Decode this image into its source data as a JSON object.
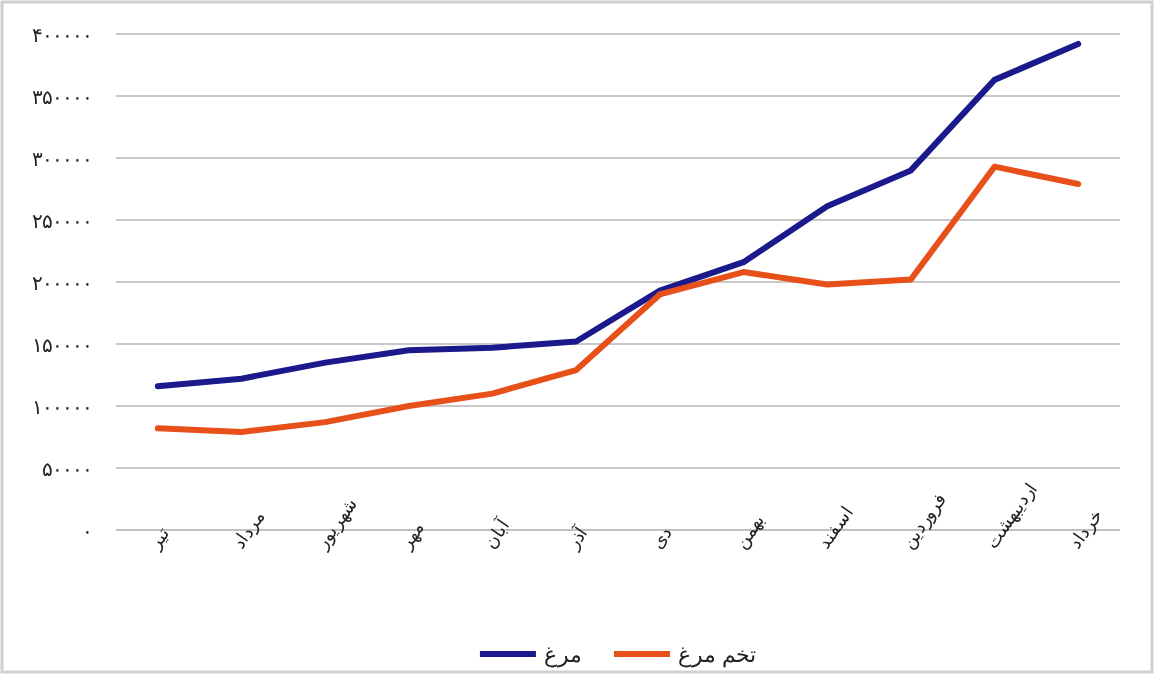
{
  "chart_data": {
    "type": "line",
    "categories": [
      "تیر",
      "مرداد",
      "شهریور",
      "مهر",
      "آبان",
      "آذر",
      "دی",
      "بهمن",
      "اسفند",
      "فروردین",
      "اردیبهشت",
      "خرداد"
    ],
    "series": [
      {
        "name": "مرغ",
        "color": "#1a1a8c",
        "values": [
          116000,
          122000,
          135000,
          145000,
          147000,
          152000,
          193000,
          216000,
          261000,
          290000,
          363000,
          392000
        ]
      },
      {
        "name": "تخم مرغ",
        "color": "#e8501a",
        "values": [
          82000,
          79000,
          87000,
          100000,
          110000,
          129000,
          190000,
          208000,
          198000,
          202000,
          293000,
          279000
        ]
      }
    ],
    "ylim": [
      0,
      400000
    ],
    "yticks": [
      {
        "value": 0,
        "label": "۰"
      },
      {
        "value": 50000,
        "label": "۵۰۰۰۰"
      },
      {
        "value": 100000,
        "label": "۱۰۰۰۰۰"
      },
      {
        "value": 150000,
        "label": "۱۵۰۰۰۰"
      },
      {
        "value": 200000,
        "label": "۲۰۰۰۰۰"
      },
      {
        "value": 250000,
        "label": "۲۵۰۰۰۰"
      },
      {
        "value": 300000,
        "label": "۳۰۰۰۰۰"
      },
      {
        "value": 350000,
        "label": "۳۵۰۰۰۰"
      },
      {
        "value": 400000,
        "label": "۴۰۰۰۰۰"
      }
    ],
    "grid": "y",
    "legend": "bottom",
    "marker": "none",
    "line_style": "solid"
  }
}
